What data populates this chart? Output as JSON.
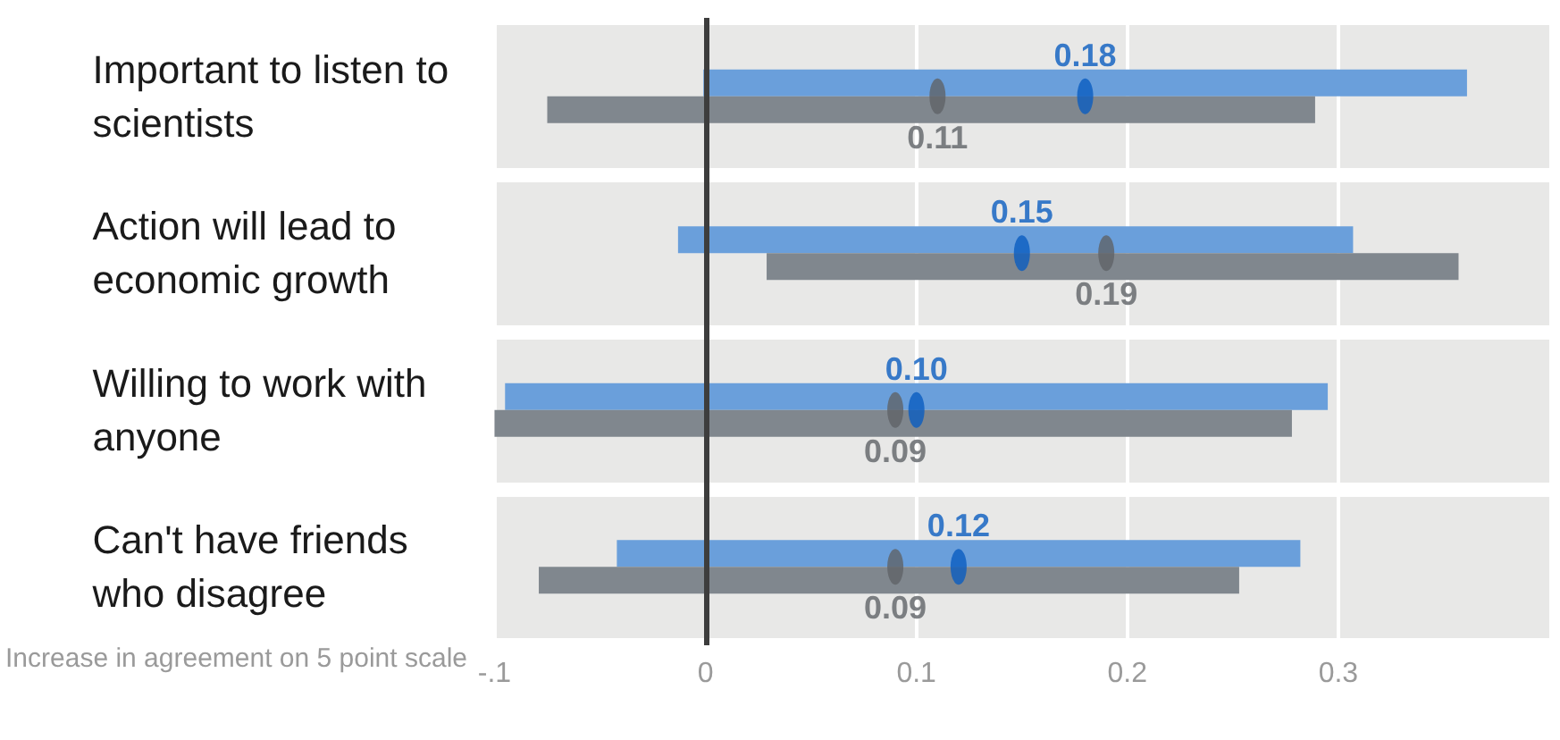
{
  "chart_data": {
    "type": "bar",
    "orientation": "horizontal",
    "categories": [
      "Important to listen to scientists",
      "Action will lead to economic growth",
      "Willing to work with anyone",
      "Can't have friends who disagree"
    ],
    "series": [
      {
        "color": "#6a9fdb",
        "base": [
          -0.001,
          -0.013,
          -0.095,
          -0.042
        ],
        "values": [
          0.362,
          0.32,
          0.39,
          0.324
        ]
      },
      {
        "color": "#80878e",
        "base": [
          -0.075,
          0.029,
          -0.1,
          -0.079
        ],
        "values": [
          0.364,
          0.328,
          0.378,
          0.332
        ]
      },
      {
        "type": "scatter",
        "color": "#0a5cc0",
        "values": [
          0.18,
          0.15,
          0.1,
          0.12
        ],
        "value_labels": [
          "0.18",
          "0.15",
          "0.10",
          "0.12"
        ]
      },
      {
        "type": "scatter",
        "color": "#5f6368",
        "values": [
          0.11,
          0.19,
          0.09,
          0.09
        ],
        "value_labels": [
          "0.11",
          "0.19",
          "0.09",
          "0.09"
        ]
      }
    ],
    "xlim": [
      -0.1,
      0.4
    ],
    "xticks": [
      {
        "value": -0.1,
        "label": "-.1"
      },
      0,
      0.1,
      0.2,
      0.3
    ],
    "xlabel": "Increase in agreement on 5 point scale",
    "grid": "x",
    "ref_lines": [
      {
        "axis": "x",
        "value": 0,
        "color": "#3d3d3d"
      }
    ]
  }
}
